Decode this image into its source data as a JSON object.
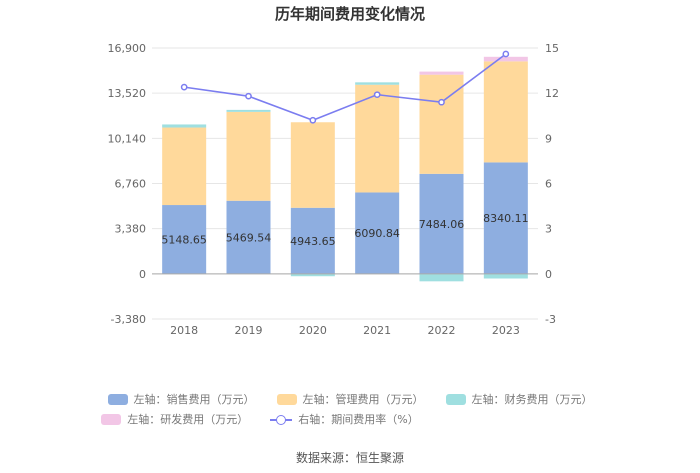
{
  "chart_data": {
    "type": "bar",
    "title": "历年期间费用变化情况",
    "categories": [
      "2018",
      "2019",
      "2020",
      "2021",
      "2022",
      "2023"
    ],
    "left_axis": {
      "min": -3380,
      "max": 16900,
      "ticks": [
        "-3,380",
        "0",
        "3,380",
        "6,760",
        "10,140",
        "13,520",
        "16,900"
      ],
      "tick_values": [
        -3380,
        0,
        3380,
        6760,
        10140,
        13520,
        16900
      ]
    },
    "right_axis": {
      "min": -3,
      "max": 15,
      "ticks": [
        "-3",
        "0",
        "3",
        "6",
        "9",
        "12",
        "15"
      ],
      "tick_values": [
        -3,
        0,
        3,
        6,
        9,
        12,
        15
      ]
    },
    "series": [
      {
        "name": "左轴：销售费用（万元）",
        "axis": "left",
        "type": "bar",
        "color": "#8eaee0",
        "values": [
          5148.65,
          5469.54,
          4943.65,
          6090.84,
          7484.06,
          8340.11
        ],
        "labels": [
          "5148.65",
          "5469.54",
          "4943.65",
          "6090.84",
          "7484.06",
          "8340.11"
        ]
      },
      {
        "name": "左轴：管理费用（万元）",
        "axis": "left",
        "type": "bar",
        "color": "#ffd99b",
        "values": [
          5800,
          6650,
          6400,
          8060,
          7420,
          7560
        ]
      },
      {
        "name": "左轴：财务费用（万元）",
        "axis": "left",
        "type": "bar",
        "color": "#9fdfe0",
        "values": [
          230,
          150,
          -180,
          180,
          -560,
          -350
        ]
      },
      {
        "name": "左轴：研发费用（万元）",
        "axis": "left",
        "type": "bar",
        "color": "#f2c6e6",
        "values": [
          0,
          0,
          0,
          0,
          230,
          340
        ]
      },
      {
        "name": "右轴：期间费用率（%）",
        "axis": "right",
        "type": "line",
        "color": "#7b7df0",
        "values": [
          12.4,
          11.8,
          10.2,
          11.9,
          11.4,
          14.6
        ]
      }
    ],
    "legend_position": "bottom"
  },
  "source": "数据来源：恒生聚源"
}
